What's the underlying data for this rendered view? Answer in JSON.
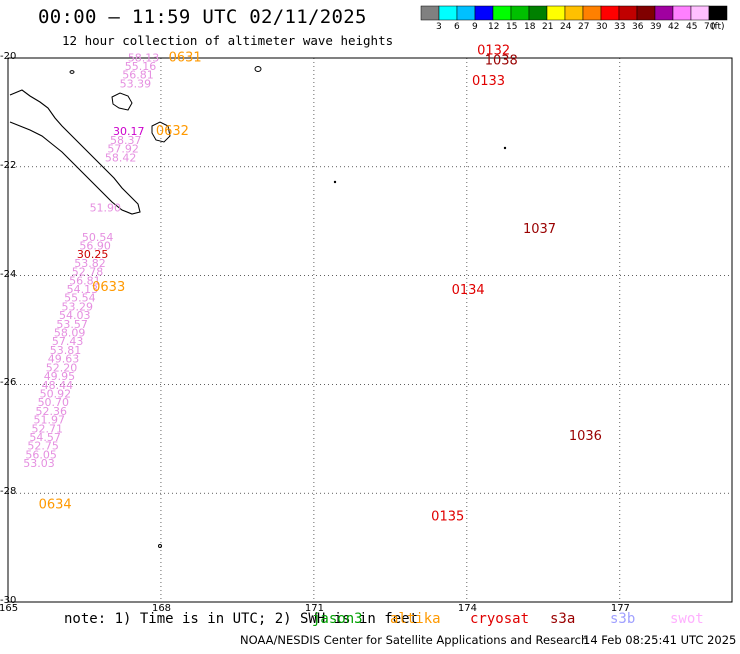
{
  "title": "00:00 – 11:59 UTC 02/11/2025",
  "subtitle": "12 hour collection of altimeter wave heights",
  "colorbar": {
    "labels": [
      "3",
      "6",
      "9",
      "12",
      "15",
      "18",
      "21",
      "24",
      "27",
      "30",
      "33",
      "36",
      "39",
      "42",
      "45",
      "70"
    ],
    "unit": "(ft)",
    "colors": [
      "#808080",
      "#00ffff",
      "#00c0ff",
      "#0000ff",
      "#00ff00",
      "#00c000",
      "#008000",
      "#ffff00",
      "#ffc000",
      "#ff8000",
      "#ff0000",
      "#c00000",
      "#800000",
      "#a000a0",
      "#ff80ff",
      "#ffc0ff",
      "#000000"
    ]
  },
  "axes": {
    "lat_labels": [
      "-20",
      "-22",
      "-24",
      "-26",
      "-28",
      "-30"
    ],
    "lon_labels": [
      "165",
      "168",
      "171",
      "174",
      "177"
    ]
  },
  "note": "note: 1) Time is in UTC; 2) SWH is in feet",
  "satellites": [
    {
      "name": "jason3",
      "color": "#00a000"
    },
    {
      "name": "altika",
      "color": "#ff9900"
    },
    {
      "name": "cryosat",
      "color": "#e00000"
    },
    {
      "name": "s3a",
      "color": "#990000"
    },
    {
      "name": "s3b",
      "color": "#a0a0ff"
    },
    {
      "name": "swot",
      "color": "#ffb0ff"
    }
  ],
  "credit": "NOAA/NESDIS Center for Satellite Applications and Research",
  "timestamp": "14 Feb 08:25:41 UTC 2025",
  "tracks": [
    {
      "id": "swot-track",
      "color": "#e58fe0",
      "time_labels": [
        {
          "text": "0631",
          "color": "#ff9900",
          "lat": -20.06,
          "lon": 168.15
        },
        {
          "text": "0632",
          "color": "#ff9900",
          "lat": -21.42,
          "lon": 167.9
        },
        {
          "text": "0633",
          "color": "#ff9900",
          "lat": -24.28,
          "lon": 166.65
        },
        {
          "text": "0634",
          "color": "#ff9900",
          "lat": -28.28,
          "lon": 165.6
        }
      ],
      "points": [
        {
          "v": "58.13",
          "lat": -20.06,
          "lon": 167.35
        },
        {
          "v": "55.16",
          "lat": -20.22,
          "lon": 167.29
        },
        {
          "v": "56.81",
          "lat": -20.38,
          "lon": 167.24
        },
        {
          "v": "53.39",
          "lat": -20.54,
          "lon": 167.19
        },
        {
          "v": "30.17",
          "lat": -21.42,
          "lon": 167.06,
          "color": "#cc00cc"
        },
        {
          "v": "58.37",
          "lat": -21.58,
          "lon": 167.0
        },
        {
          "v": "57.92",
          "lat": -21.74,
          "lon": 166.95
        },
        {
          "v": "58.42",
          "lat": -21.9,
          "lon": 166.9
        },
        {
          "v": "51.90",
          "lat": -22.82,
          "lon": 166.6
        },
        {
          "v": "50.54",
          "lat": -23.36,
          "lon": 166.45
        },
        {
          "v": "56.90",
          "lat": -23.52,
          "lon": 166.4
        },
        {
          "v": "30.25",
          "lat": -23.68,
          "lon": 166.35,
          "color": "#cc0000"
        },
        {
          "v": "53.82",
          "lat": -23.84,
          "lon": 166.3
        },
        {
          "v": "52.78",
          "lat": -24.0,
          "lon": 166.25
        },
        {
          "v": "56.81",
          "lat": -24.16,
          "lon": 166.2
        },
        {
          "v": "54.13",
          "lat": -24.32,
          "lon": 166.15
        },
        {
          "v": "55.54",
          "lat": -24.48,
          "lon": 166.1
        },
        {
          "v": "53.29",
          "lat": -24.64,
          "lon": 166.05
        },
        {
          "v": "54.03",
          "lat": -24.8,
          "lon": 166.0
        },
        {
          "v": "53.57",
          "lat": -24.96,
          "lon": 165.95
        },
        {
          "v": "58.09",
          "lat": -25.12,
          "lon": 165.9
        },
        {
          "v": "57.43",
          "lat": -25.28,
          "lon": 165.86
        },
        {
          "v": "53.81",
          "lat": -25.44,
          "lon": 165.82
        },
        {
          "v": "49.63",
          "lat": -25.6,
          "lon": 165.78
        },
        {
          "v": "52.20",
          "lat": -25.76,
          "lon": 165.74
        },
        {
          "v": "49.95",
          "lat": -25.92,
          "lon": 165.7
        },
        {
          "v": "48.44",
          "lat": -26.08,
          "lon": 165.66
        },
        {
          "v": "50.92",
          "lat": -26.24,
          "lon": 165.62
        },
        {
          "v": "50.70",
          "lat": -26.4,
          "lon": 165.58
        },
        {
          "v": "52.36",
          "lat": -26.56,
          "lon": 165.54
        },
        {
          "v": "51.97",
          "lat": -26.72,
          "lon": 165.5
        },
        {
          "v": "52.71",
          "lat": -26.88,
          "lon": 165.46
        },
        {
          "v": "54.57",
          "lat": -27.04,
          "lon": 165.42
        },
        {
          "v": "52.75",
          "lat": -27.2,
          "lon": 165.38
        },
        {
          "v": "56.05",
          "lat": -27.36,
          "lon": 165.34
        },
        {
          "v": "53.03",
          "lat": -27.52,
          "lon": 165.3
        }
      ]
    },
    {
      "id": "cryosat-track",
      "color": "#00bfe6",
      "time_labels": [
        {
          "text": "0132",
          "color": "#e00000",
          "lat": -19.94,
          "lon": 174.2
        },
        {
          "text": "0133",
          "color": "#e00000",
          "lat": -20.5,
          "lon": 174.1
        },
        {
          "text": "0134",
          "color": "#e00000",
          "lat": -24.34,
          "lon": 173.7
        },
        {
          "text": "0135",
          "color": "#e00000",
          "lat": -28.5,
          "lon": 173.3
        }
      ],
      "points": []
    },
    {
      "id": "s3a-track",
      "color": "#00bfe6",
      "time_labels": [
        {
          "text": "1038",
          "color": "#990000",
          "lat": -20.12,
          "lon": 174.35
        },
        {
          "text": "1037",
          "color": "#990000",
          "lat": -23.22,
          "lon": 175.1
        },
        {
          "text": "1036",
          "color": "#990000",
          "lat": -27.02,
          "lon": 176.0
        }
      ],
      "points": []
    }
  ]
}
